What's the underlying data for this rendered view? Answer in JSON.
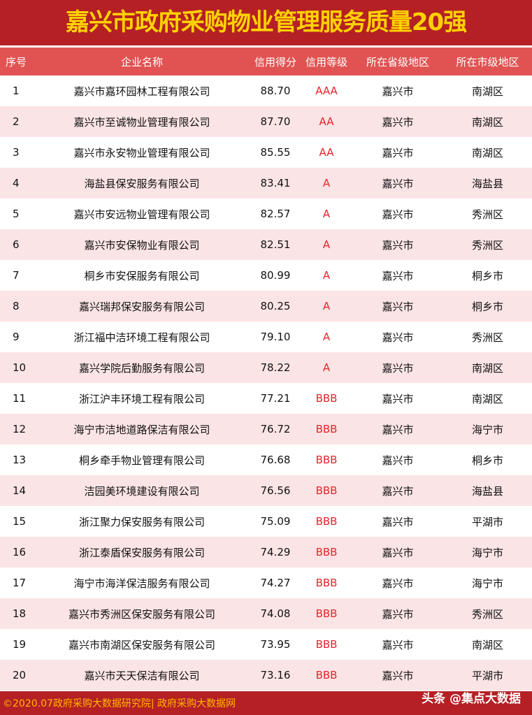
{
  "title": "嘉兴市政府采购物业管理服务质量20强",
  "headers": [
    "序号",
    "企业名称",
    "信用得分",
    "信用等级",
    "所在省级地区",
    "所在市级地区"
  ],
  "rows": [
    [
      "1",
      "嘉兴市嘉环园林工程有限公司",
      "88.70",
      "AAA",
      "嘉兴市",
      "南湖区"
    ],
    [
      "2",
      "嘉兴市至诚物业管理有限公司",
      "87.70",
      "AA",
      "嘉兴市",
      "南湖区"
    ],
    [
      "3",
      "嘉兴市永安物业管理有限公司",
      "85.55",
      "AA",
      "嘉兴市",
      "南湖区"
    ],
    [
      "4",
      "海盐县保安服务有限公司",
      "83.41",
      "A",
      "嘉兴市",
      "海盐县"
    ],
    [
      "5",
      "嘉兴市安远物业管理有限公司",
      "82.57",
      "A",
      "嘉兴市",
      "秀洲区"
    ],
    [
      "6",
      "嘉兴市安保物业有限公司",
      "82.51",
      "A",
      "嘉兴市",
      "秀洲区"
    ],
    [
      "7",
      "桐乡市安保服务有限公司",
      "80.99",
      "A",
      "嘉兴市",
      "桐乡市"
    ],
    [
      "8",
      "嘉兴瑞邦保安服务有限公司",
      "80.25",
      "A",
      "嘉兴市",
      "桐乡市"
    ],
    [
      "9",
      "浙江福中洁环境工程有限公司",
      "79.10",
      "A",
      "嘉兴市",
      "秀洲区"
    ],
    [
      "10",
      "嘉兴学院后勤服务有限公司",
      "78.22",
      "A",
      "嘉兴市",
      "南湖区"
    ],
    [
      "11",
      "浙江沪丰环境工程有限公司",
      "77.21",
      "BBB",
      "嘉兴市",
      "南湖区"
    ],
    [
      "12",
      "海宁市洁地道路保洁有限公司",
      "76.72",
      "BBB",
      "嘉兴市",
      "海宁市"
    ],
    [
      "13",
      "桐乡牵手物业管理有限公司",
      "76.68",
      "BBB",
      "嘉兴市",
      "桐乡市"
    ],
    [
      "14",
      "洁园美环境建设有限公司",
      "76.56",
      "BBB",
      "嘉兴市",
      "海盐县"
    ],
    [
      "15",
      "浙江聚力保安服务有限公司",
      "75.09",
      "BBB",
      "嘉兴市",
      "平湖市"
    ],
    [
      "16",
      "浙江泰盾保安服务有限公司",
      "74.29",
      "BBB",
      "嘉兴市",
      "海宁市"
    ],
    [
      "17",
      "海宁市海洋保洁服务有限公司",
      "74.27",
      "BBB",
      "嘉兴市",
      "海宁市"
    ],
    [
      "18",
      "嘉兴市秀洲区保安服务有限公司",
      "74.08",
      "BBB",
      "嘉兴市",
      "秀洲区"
    ],
    [
      "19",
      "嘉兴市南湖区保安服务有限公司",
      "73.95",
      "BBB",
      "嘉兴市",
      "南湖区"
    ],
    [
      "20",
      "嘉兴市天天保洁有限公司",
      "73.16",
      "BBB",
      "嘉兴市",
      "平湖市"
    ]
  ],
  "footer": {
    "left": "©2020.07政府采购大数据研究院| 政府采购大数据网",
    "watermark": "头条 @集点大数据"
  },
  "colors": {
    "title_bg": "#b52025",
    "title_text": "#ffd200",
    "header_bg": "#e05352",
    "alt_row": "#fbe4e5",
    "grade": "#e8232a"
  }
}
